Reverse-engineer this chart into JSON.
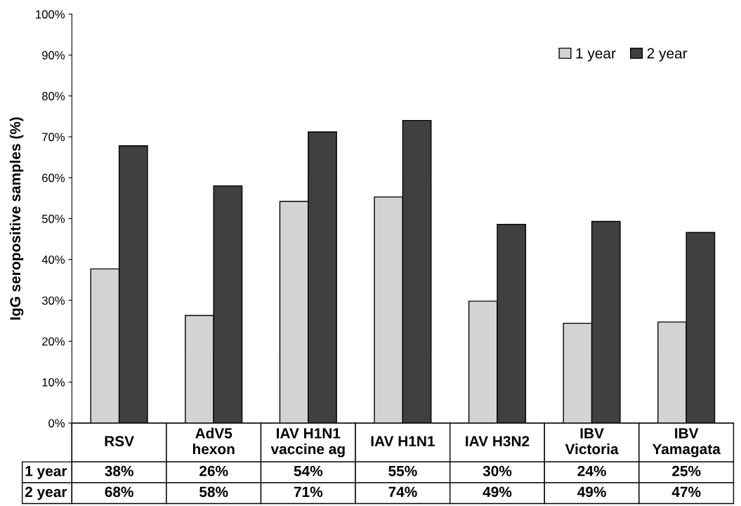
{
  "chart_data": {
    "type": "bar",
    "ylabel": "IgG seropositive samples (%)",
    "categories": [
      "RSV",
      "AdV5\nhexon",
      "IAV H1N1\nvaccine ag",
      "IAV H1N1",
      "IAV H3N2",
      "IBV\nVictoria",
      "IBV\nYamagata"
    ],
    "series": [
      {
        "name": "1 year",
        "color": "#d3d3d3",
        "values": [
          37.7,
          26.3,
          54.2,
          55.3,
          29.8,
          24.4,
          24.7
        ],
        "value_labels": [
          "38%",
          "26%",
          "54%",
          "55%",
          "30%",
          "24%",
          "25%"
        ]
      },
      {
        "name": "2 year",
        "color": "#404040",
        "values": [
          67.8,
          58.0,
          71.2,
          74.0,
          48.6,
          49.3,
          46.6
        ],
        "value_labels": [
          "68%",
          "58%",
          "71%",
          "74%",
          "49%",
          "49%",
          "47%"
        ]
      }
    ],
    "ylim": [
      0,
      100
    ],
    "yticks": [
      {
        "value": 0,
        "label": "0%"
      },
      {
        "value": 10,
        "label": "10%"
      },
      {
        "value": 20,
        "label": "20%"
      },
      {
        "value": 30,
        "label": "30%"
      },
      {
        "value": 40,
        "label": "40%"
      },
      {
        "value": 50,
        "label": "50%"
      },
      {
        "value": 60,
        "label": "60%"
      },
      {
        "value": 70,
        "label": "70%"
      },
      {
        "value": 80,
        "label": "80%"
      },
      {
        "value": 90,
        "label": "90%"
      },
      {
        "value": 100,
        "label": "100%"
      }
    ],
    "grid": false,
    "legend": "top right"
  }
}
